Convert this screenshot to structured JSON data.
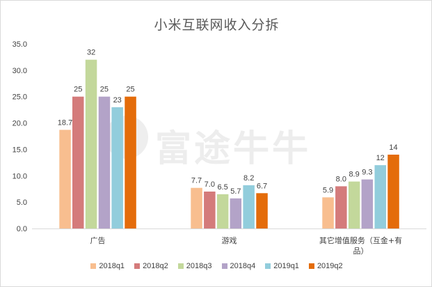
{
  "chart_data": {
    "type": "bar",
    "title": "小米互联网收入分拆",
    "categories": [
      "广告",
      "游戏",
      "其它增值服务（互金+有品）"
    ],
    "series": [
      {
        "name": "2018q1",
        "color": "#f8be8f",
        "values": [
          18.7,
          7.7,
          5.9
        ],
        "labels": [
          "18.7",
          "7.7",
          "5.9"
        ]
      },
      {
        "name": "2018q2",
        "color": "#d47b7b",
        "values": [
          25,
          7.0,
          8.0
        ],
        "labels": [
          "25",
          "7.0",
          "8.0"
        ]
      },
      {
        "name": "2018q3",
        "color": "#c3d89b",
        "values": [
          32,
          6.5,
          8.9
        ],
        "labels": [
          "32",
          "6.5",
          "8.9"
        ]
      },
      {
        "name": "2018q4",
        "color": "#b3a3c8",
        "values": [
          25,
          5.7,
          9.3
        ],
        "labels": [
          "25",
          "5.7",
          "9.3"
        ]
      },
      {
        "name": "2019q1",
        "color": "#92cddc",
        "values": [
          23,
          8.2,
          12
        ],
        "labels": [
          "23",
          "8.2",
          "12"
        ]
      },
      {
        "name": "2019q2",
        "color": "#e46c0a",
        "values": [
          25,
          6.7,
          14
        ],
        "labels": [
          "25",
          "6.7",
          "14"
        ]
      }
    ],
    "ylim": [
      0,
      35
    ],
    "yticks": [
      "0.0",
      "5.0",
      "10.0",
      "15.0",
      "20.0",
      "25.0",
      "30.0",
      "35.0"
    ],
    "grid": false,
    "legend": "bottom"
  },
  "watermark": "富途牛牛"
}
